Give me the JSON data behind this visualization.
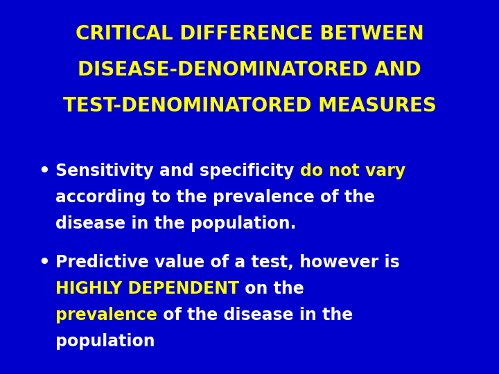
{
  "background_color": "#0000CC",
  "title_lines": [
    "CRITICAL DIFFERENCE BETWEEN",
    "DISEASE-DENOMINATORED AND",
    "TEST-DENOMINATORED MEASURES"
  ],
  "title_color": "#FFFF00",
  "title_fontsize": 20,
  "bullet_fontsize": 17,
  "fig_width": 7.2,
  "fig_height": 5.4,
  "dpi": 100
}
